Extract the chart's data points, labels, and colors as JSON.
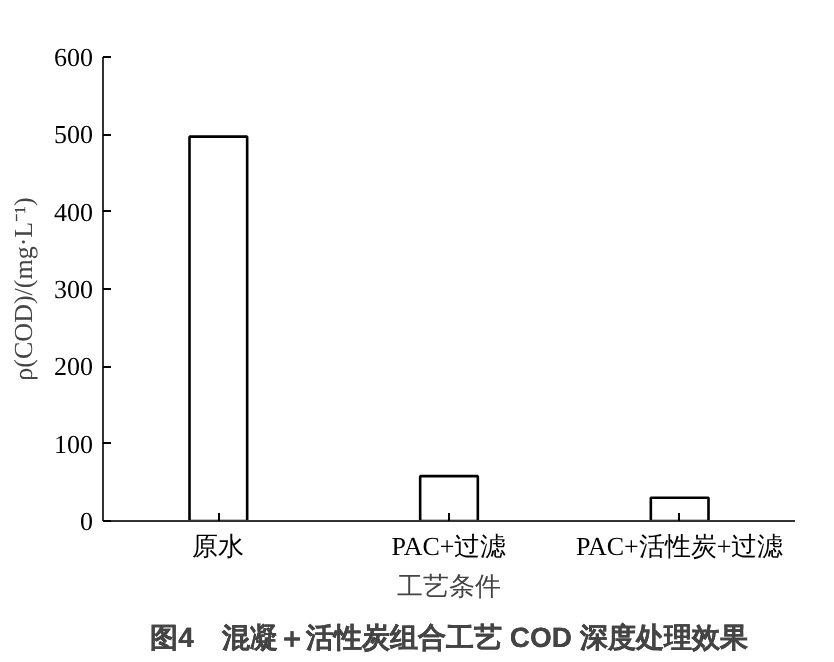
{
  "chart_data": {
    "type": "bar",
    "title": "图4　混凝＋活性炭组合工艺 COD 深度处理效果",
    "xlabel": "工艺条件",
    "ylabel": "ρ(COD)/(mg·L⁻¹)",
    "categories": [
      "原水",
      "PAC+过滤",
      "PAC+活性炭+过滤"
    ],
    "values": [
      497,
      58,
      30
    ],
    "color": "#000000",
    "ylim": [
      0,
      600
    ],
    "yticks": [
      0,
      100,
      200,
      300,
      400,
      500,
      600
    ],
    "grid": false
  }
}
